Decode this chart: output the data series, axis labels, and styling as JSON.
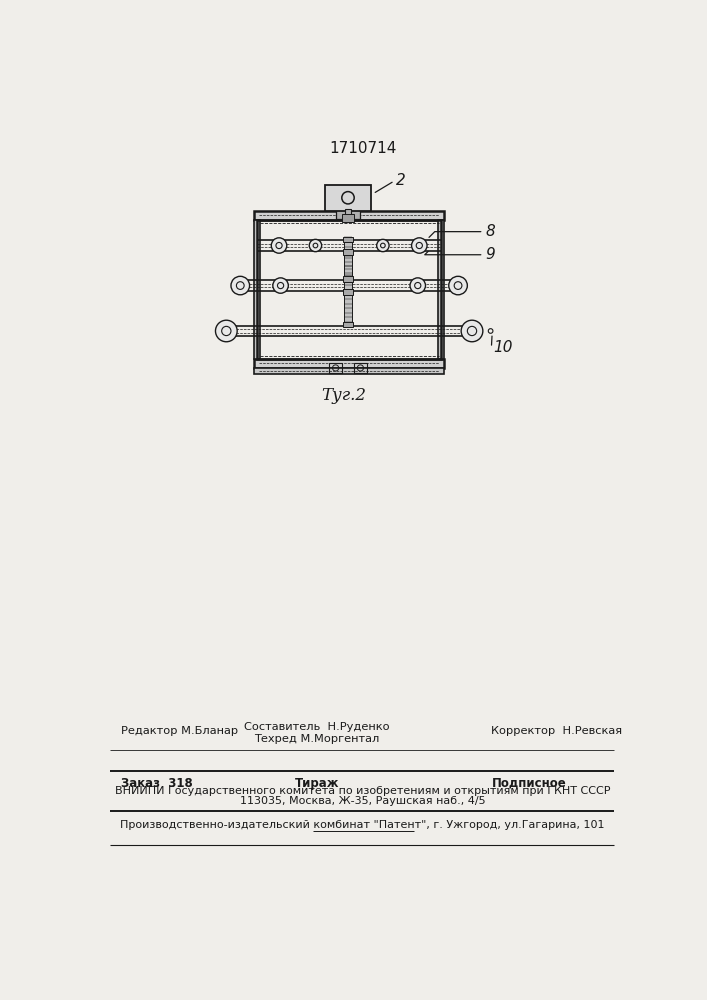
{
  "patent_number": "1710714",
  "fig_label": "Τуг.2",
  "label_2": "2",
  "label_8": "8",
  "label_9": "9",
  "label_10": "10",
  "bg_color": "#f0eeea",
  "line_color": "#1a1a1a",
  "footer_line1_left": "Редактор М.Бланар",
  "footer_line1_center_top": "Составитель  Н.Руденко",
  "footer_line1_center_bot": "Техред М.Моргентал",
  "footer_line1_right": "Корректор  Н.Ревская",
  "footer_line2_col1": "Заказ  318",
  "footer_line2_col2": "Тираж",
  "footer_line2_col3": "Подписное",
  "footer_line3": "ВНИИПИ Государственного комитета по изобретениям и открытиям при ГКНТ СССР",
  "footer_line4": "113035, Москва, Ж-35, Раушская наб., 4/5",
  "footer_line5": "Производственно-издательский комбинат \"Патент\", г. Ужгород, ул.Гагарина, 101"
}
